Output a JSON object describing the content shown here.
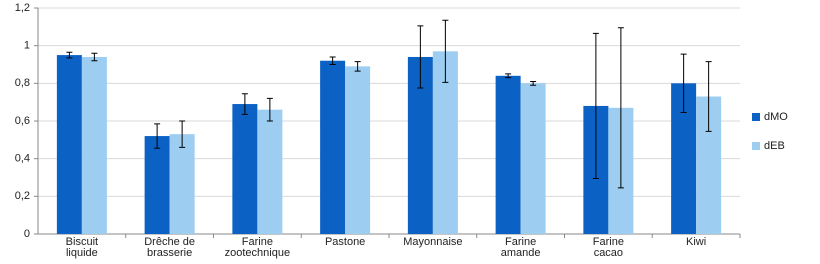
{
  "chart_data": {
    "type": "bar",
    "categories": [
      "Biscuit\nliquide",
      "Drêche de\nbrasserie",
      "Farine\nzootechnique",
      "Pastone",
      "Mayonnaise",
      "Farine\namande",
      "Farine\ncacao",
      "Kiwi"
    ],
    "series": [
      {
        "name": "dMO",
        "color": "#0b61c4",
        "values": [
          0.95,
          0.52,
          0.69,
          0.92,
          0.94,
          0.84,
          0.68,
          0.8
        ],
        "errors": [
          0.015,
          0.065,
          0.055,
          0.02,
          0.165,
          0.01,
          0.385,
          0.155
        ]
      },
      {
        "name": "dEB",
        "color": "#9dcdf0",
        "values": [
          0.94,
          0.53,
          0.66,
          0.89,
          0.97,
          0.8,
          0.67,
          0.73
        ],
        "errors": [
          0.02,
          0.07,
          0.06,
          0.025,
          0.165,
          0.01,
          0.425,
          0.185
        ]
      }
    ],
    "ylim": [
      0,
      1.2
    ],
    "yticks": [
      0,
      {
        "value": 0.2,
        "label": "0,2"
      },
      {
        "value": 0.4,
        "label": "0,4"
      },
      {
        "value": 0.6,
        "label": "0,6"
      },
      {
        "value": 0.8,
        "label": "0,8"
      },
      1,
      {
        "value": 1.2,
        "label": "1,2"
      }
    ],
    "grid": true,
    "legend": "right"
  }
}
